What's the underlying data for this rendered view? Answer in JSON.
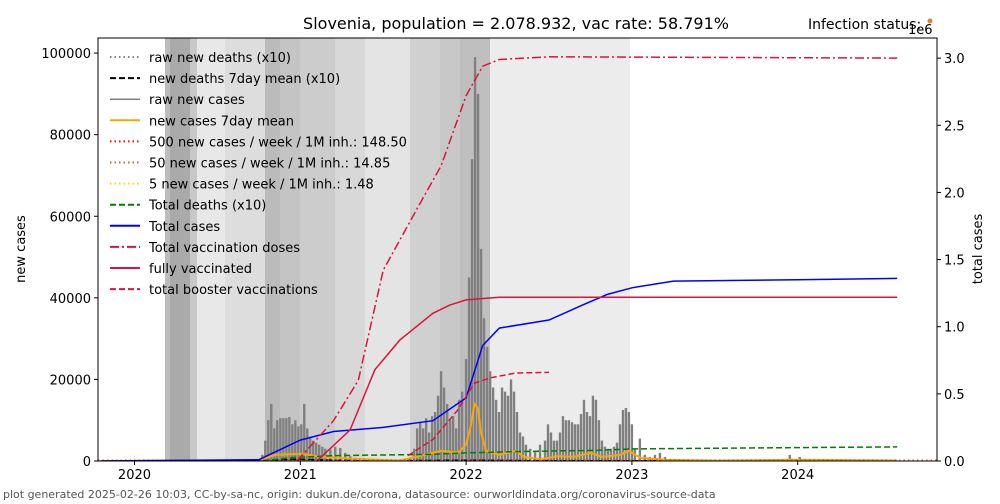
{
  "chart_data": {
    "type": "line",
    "title": "Slovenia, population = 2.078.932, vac rate: 58.791%",
    "ylabel": "new cases",
    "y2label": "total cases",
    "y2_offset": "1e6",
    "annotations": [
      "Infection status:"
    ],
    "legend": "upper left",
    "xlim": [
      2019.78,
      2024.84
    ],
    "xticks": [
      2020,
      2021,
      2022,
      2023,
      2024
    ],
    "ylim": [
      0,
      103700
    ],
    "yticks": [
      0,
      20000,
      40000,
      60000,
      80000,
      100000
    ],
    "y2lim": [
      0,
      3.15
    ],
    "y2ticks": [
      {
        "value": 0,
        "label": "0.0"
      },
      0.5,
      {
        "value": 1,
        "label": "1.0"
      },
      1.5,
      {
        "value": 2,
        "label": "2.0"
      },
      2.5,
      {
        "value": 3,
        "label": "3.0"
      }
    ],
    "series": [
      {
        "name": "raw new deaths (x10)",
        "kind": "line",
        "color": "#808080",
        "dash": "dotted",
        "x": [
          2019.8,
          2020.8,
          2020.9,
          2021.0,
          2021.2,
          2021.5,
          2021.9,
          2022.1,
          2022.5,
          2023.0,
          2024.6
        ],
        "values": [
          0,
          0,
          400,
          500,
          200,
          20,
          200,
          200,
          50,
          100,
          10
        ]
      },
      {
        "name": "new deaths 7day mean (x10)",
        "kind": "line",
        "color": "#000000",
        "dash": "dashed",
        "x": [
          2019.8,
          2020.8,
          2020.9,
          2021.0,
          2021.2,
          2021.5,
          2021.9,
          2022.1,
          2022.5,
          2023.0,
          2024.6
        ],
        "values": [
          0,
          0,
          350,
          450,
          180,
          20,
          180,
          180,
          40,
          80,
          10
        ]
      },
      {
        "name": "raw new cases",
        "kind": "bar",
        "color": "#808080",
        "x": [
          2020.771,
          2020.789,
          2020.807,
          2020.825,
          2020.843,
          2020.861,
          2020.88,
          2020.898,
          2020.916,
          2020.934,
          2020.952,
          2020.97,
          2020.988,
          2021.006,
          2021.024,
          2021.042,
          2021.06,
          2021.078,
          2021.096,
          2021.114,
          2021.133,
          2021.151,
          2021.181,
          2021.211,
          2021.241,
          2021.271,
          2021.301,
          2021.331,
          2021.392,
          2021.482,
          2021.602,
          2021.663,
          2021.687,
          2021.705,
          2021.723,
          2021.741,
          2021.759,
          2021.777,
          2021.795,
          2021.813,
          2021.831,
          2021.849,
          2021.867,
          2021.886,
          2021.904,
          2021.922,
          2021.94,
          2021.958,
          2021.976,
          2022.0,
          2022.018,
          2022.036,
          2022.054,
          2022.072,
          2022.09,
          2022.108,
          2022.127,
          2022.145,
          2022.163,
          2022.181,
          2022.199,
          2022.217,
          2022.235,
          2022.253,
          2022.271,
          2022.289,
          2022.307,
          2022.325,
          2022.343,
          2022.361,
          2022.386,
          2022.416,
          2022.446,
          2022.476,
          2022.494,
          2022.512,
          2022.53,
          2022.548,
          2022.566,
          2022.584,
          2022.602,
          2022.62,
          2022.639,
          2022.657,
          2022.675,
          2022.693,
          2022.711,
          2022.729,
          2022.747,
          2022.765,
          2022.783,
          2022.801,
          2022.819,
          2022.837,
          2022.855,
          2022.873,
          2022.892,
          2022.91,
          2022.928,
          2022.946,
          2022.964,
          2022.982,
          2023.0,
          2023.018,
          2023.048,
          2023.078,
          2023.108,
          2023.139,
          2023.169,
          2023.199,
          2023.259,
          2023.41,
          2023.711,
          2023.952,
          2024.012,
          2024.133
        ],
        "values": [
          1500,
          5000,
          10000,
          14000,
          8000,
          10000,
          10500,
          10500,
          10500,
          10800,
          9000,
          10000,
          8500,
          9000,
          14000,
          8000,
          6000,
          5000,
          4500,
          4000,
          3500,
          3000,
          2800,
          3500,
          3200,
          2000,
          1200,
          800,
          500,
          200,
          300,
          800,
          3000,
          8000,
          9500,
          8000,
          10500,
          7000,
          11000,
          12000,
          16000,
          22000,
          18000,
          14000,
          10000,
          11000,
          8000,
          15000,
          17000,
          25000,
          45000,
          74000,
          99000,
          90000,
          52000,
          35000,
          28000,
          22000,
          18000,
          15000,
          12000,
          18000,
          17000,
          16000,
          20000,
          17000,
          12000,
          7000,
          6000,
          4000,
          3000,
          2500,
          4000,
          5000,
          9000,
          7000,
          5000,
          5000,
          7000,
          11000,
          10000,
          10000,
          9500,
          9000,
          9000,
          11500,
          15000,
          12000,
          11000,
          16000,
          15000,
          10000,
          5000,
          3500,
          3000,
          3000,
          3500,
          4500,
          9000,
          12500,
          13000,
          12000,
          9000,
          3000,
          5500,
          1500,
          1000,
          1500,
          2000,
          1000,
          500,
          300,
          300,
          1500,
          1000,
          200
        ]
      },
      {
        "name": "new cases 7day mean",
        "kind": "line",
        "color": "#ffa500",
        "dash": "solid",
        "width": 2,
        "x": [
          2019.8,
          2020.75,
          2020.85,
          2021.0,
          2021.1,
          2021.3,
          2021.6,
          2021.75,
          2021.85,
          2021.95,
          2022.0,
          2022.03,
          2022.05,
          2022.07,
          2022.09,
          2022.12,
          2022.2,
          2022.3,
          2022.35,
          2022.45,
          2022.55,
          2022.65,
          2022.75,
          2022.82,
          2022.93,
          2022.98,
          2023.05,
          2023.2,
          2023.5,
          2024.0,
          2024.6
        ],
        "values": [
          0,
          200,
          1500,
          1800,
          1200,
          600,
          100,
          1500,
          2500,
          2000,
          4000,
          9000,
          14000,
          13000,
          7000,
          2500,
          1500,
          2500,
          1000,
          400,
          1200,
          1000,
          2000,
          1000,
          1500,
          2500,
          800,
          300,
          100,
          300,
          100
        ]
      },
      {
        "name": "500 new cases / week / 1M inh.: 148.50",
        "kind": "hline",
        "color": "#ff0000",
        "dash": "dotted",
        "value": 148.5
      },
      {
        "name": "50 new cases / week / 1M inh.: 14.85",
        "kind": "hline",
        "color": "#d2691e",
        "dash": "dotted",
        "value": 14.85
      },
      {
        "name": "5 new cases / week / 1M inh.: 1.48",
        "kind": "hline",
        "color": "#ffd700",
        "dash": "dotted",
        "value": 1.48
      },
      {
        "name": "Total deaths (x10)",
        "kind": "line",
        "color": "#008000",
        "dash": "dashed",
        "axis": "y2",
        "x": [
          2019.8,
          2020.8,
          2020.95,
          2021.2,
          2021.5,
          2021.8,
          2022.0,
          2022.3,
          2022.8,
          2023.0,
          2024.0,
          2024.6
        ],
        "values": [
          0,
          0.005,
          0.025,
          0.04,
          0.045,
          0.05,
          0.06,
          0.07,
          0.08,
          0.09,
          0.1,
          0.105
        ]
      },
      {
        "name": "Total cases",
        "kind": "line",
        "color": "#0000ff",
        "dash": "solid",
        "axis": "y2",
        "x": [
          2019.8,
          2020.75,
          2021.0,
          2021.2,
          2021.5,
          2021.8,
          2022.0,
          2022.1,
          2022.2,
          2022.5,
          2022.7,
          2022.85,
          2023.0,
          2023.25,
          2024.0,
          2024.6
        ],
        "values": [
          0,
          0.01,
          0.156,
          0.22,
          0.25,
          0.3,
          0.47,
          0.86,
          0.99,
          1.05,
          1.16,
          1.24,
          1.29,
          1.34,
          1.35,
          1.36
        ]
      },
      {
        "name": "Total vaccination doses",
        "kind": "line",
        "color": "#dc143c",
        "dash": "dashdot",
        "axis": "y2",
        "x": [
          2020.98,
          2021.2,
          2021.35,
          2021.5,
          2021.7,
          2021.85,
          2022.0,
          2022.1,
          2022.2,
          2022.5,
          2024.6
        ],
        "values": [
          0,
          0.3,
          0.6,
          1.42,
          1.87,
          2.2,
          2.72,
          2.94,
          2.99,
          3.01,
          3.0
        ]
      },
      {
        "name": "fully vaccinated",
        "kind": "line",
        "color": "#dc143c",
        "dash": "solid",
        "axis": "y2",
        "x": [
          2021.1,
          2021.3,
          2021.45,
          2021.6,
          2021.8,
          2021.9,
          2022.0,
          2022.2,
          2024.6
        ],
        "values": [
          0,
          0.23,
          0.68,
          0.9,
          1.1,
          1.16,
          1.2,
          1.22,
          1.22
        ]
      },
      {
        "name": "total booster vaccinations",
        "kind": "line",
        "color": "#dc143c",
        "dash": "dashed",
        "axis": "y2",
        "x": [
          2021.65,
          2021.8,
          2021.95,
          2022.05,
          2022.15,
          2022.3,
          2022.5
        ],
        "values": [
          0.04,
          0.16,
          0.38,
          0.58,
          0.62,
          0.655,
          0.66
        ]
      }
    ]
  },
  "footer": "plot generated 2025-02-26 10:03, CC-by-sa-nc, origin: dukun.de/corona, datasource: ourworldindata.org/coronavirus-source-data"
}
